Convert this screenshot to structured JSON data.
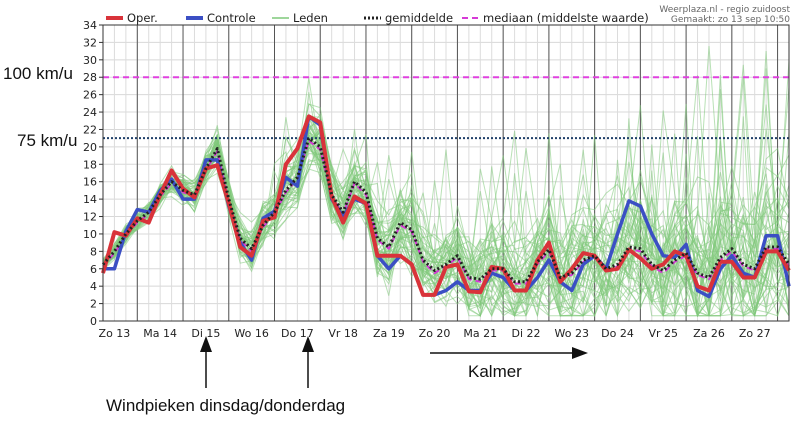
{
  "credits": [
    "Weerplaza.nl - regio zuidoost",
    "Gemaakt: zo 13 sep 10:50"
  ],
  "legend": [
    {
      "label": "Oper.",
      "color": "#d9333a",
      "style": "solid-thick"
    },
    {
      "label": "Controle",
      "color": "#3b4fc4",
      "style": "solid-thick"
    },
    {
      "label": "Leden",
      "color": "#7fc97a",
      "style": "solid-thin"
    },
    {
      "label": "gemiddelde",
      "color": "#222222",
      "style": "dotted"
    },
    {
      "label": "mediaan (middelste waarde)",
      "color": "#d63ad6",
      "style": "dashed"
    }
  ],
  "annotations": {
    "left_labels": [
      {
        "text": "100 km/u",
        "value": 28,
        "color": "#e040e0"
      },
      {
        "text": "75 km/u",
        "value": 21,
        "color": "#20406a"
      }
    ],
    "kalmer": "Kalmer",
    "windpieken": "Windpieken dinsdag/donderdag"
  },
  "chart_data": {
    "type": "line",
    "ylim": [
      0,
      34
    ],
    "ytick_step": 2,
    "x_range": [
      0,
      30
    ],
    "day_labels": [
      "Zo 13",
      "Ma 14",
      "Di 15",
      "Wo 16",
      "Do 17",
      "Vr 18",
      "Za 19",
      "Zo 20",
      "Ma 21",
      "Di 22",
      "Wo 23",
      "Do 24",
      "Vr 25",
      "Za 26",
      "Zo 27"
    ],
    "reference_lines": [
      28,
      21
    ],
    "series": [
      {
        "name": "Oper.",
        "color": "#d9333a",
        "x": [
          0,
          0.5,
          1,
          1.5,
          2,
          2.5,
          3,
          3.5,
          4,
          4.5,
          5,
          5.5,
          6,
          6.5,
          7,
          7.5,
          8,
          8.5,
          9,
          9.5,
          10,
          10.5,
          11,
          11.5,
          12,
          12.5,
          13,
          13.5,
          14,
          14.5,
          15,
          15.5,
          16,
          16.5,
          17,
          17.5,
          18,
          18.5,
          19,
          19.5,
          20,
          20.5,
          21,
          21.5,
          22,
          22.5,
          23,
          23.5,
          24,
          24.5,
          25,
          25.5,
          26,
          26.5,
          27,
          27.5,
          28,
          28.5,
          29,
          29.5,
          30
        ],
        "values": [
          5.5,
          10.2,
          9.8,
          11.8,
          11.3,
          14.5,
          17.3,
          15.2,
          14.2,
          17.5,
          17.9,
          13.5,
          8.5,
          7.5,
          11.5,
          11.9,
          18,
          19.8,
          23.5,
          22.8,
          14.3,
          11.3,
          14.3,
          13.5,
          7.5,
          7.5,
          7.5,
          6.5,
          3,
          3,
          6.2,
          6.5,
          3.4,
          3.3,
          6.2,
          6,
          3.5,
          3.5,
          7,
          9,
          4.5,
          6,
          7.8,
          7.5,
          5.8,
          6,
          8.2,
          7.2,
          6,
          6.5,
          8,
          7.5,
          4,
          3.5,
          6.8,
          6.8,
          5,
          5,
          8,
          8,
          5.8
        ]
      },
      {
        "name": "Controle",
        "color": "#3b4fc4",
        "x": [
          0,
          0.5,
          1,
          1.5,
          2,
          2.5,
          3,
          3.5,
          4,
          4.5,
          5,
          5.5,
          6,
          6.5,
          7,
          7.5,
          8,
          8.5,
          9,
          9.5,
          10,
          10.5,
          11,
          11.5,
          12,
          12.5,
          13,
          13.5,
          14,
          14.5,
          15,
          15.5,
          16,
          16.5,
          17,
          17.5,
          18,
          18.5,
          19,
          19.5,
          20,
          20.5,
          21,
          21.5,
          22,
          22.5,
          23,
          23.5,
          24,
          24.5,
          25,
          25.5,
          26,
          26.5,
          27,
          27.5,
          28,
          28.5,
          29,
          29.5,
          30
        ],
        "values": [
          6,
          6,
          10.3,
          12.8,
          12.5,
          15,
          16.3,
          14,
          14,
          18.5,
          18.5,
          13.2,
          9,
          7,
          11.8,
          12.6,
          16.5,
          15.5,
          23.5,
          22.5,
          14,
          12,
          14,
          13.5,
          7.5,
          6,
          7.5,
          6.5,
          3,
          3,
          3.5,
          4.5,
          3.5,
          3.5,
          5.5,
          5,
          3.5,
          3.5,
          5,
          7,
          4.5,
          3.5,
          6.5,
          7.5,
          6,
          10,
          13.8,
          13.2,
          10,
          7.5,
          7.3,
          8.8,
          3.5,
          2.8,
          6,
          7.5,
          5.5,
          5,
          9.8,
          9.8,
          4
        ]
      },
      {
        "name": "gemiddelde",
        "color": "#222222",
        "x": [
          0,
          0.5,
          1,
          1.5,
          2,
          2.5,
          3,
          3.5,
          4,
          4.5,
          5,
          5.5,
          6,
          6.5,
          7,
          7.5,
          8,
          8.5,
          9,
          9.5,
          10,
          10.5,
          11,
          11.5,
          12,
          12.5,
          13,
          13.5,
          14,
          14.5,
          15,
          15.5,
          16,
          16.5,
          17,
          17.5,
          18,
          18.5,
          19,
          19.5,
          20,
          20.5,
          21,
          21.5,
          22,
          22.5,
          23,
          23.5,
          24,
          24.5,
          25,
          25.5,
          26,
          26.5,
          27,
          27.5,
          28,
          28.5,
          29,
          29.5,
          30
        ],
        "values": [
          6.5,
          8,
          10,
          11.5,
          12.5,
          14.5,
          16,
          15,
          14.5,
          17.5,
          19.8,
          14,
          9.5,
          8.3,
          11,
          12.5,
          15,
          16.5,
          21,
          20,
          14.5,
          12.5,
          16,
          14.8,
          9.5,
          8.5,
          11.3,
          10.5,
          7,
          5.8,
          6.5,
          7.5,
          5,
          4.8,
          6,
          6,
          4.5,
          4.5,
          6.8,
          8.2,
          5,
          5.5,
          7,
          7.5,
          6,
          6.5,
          8.5,
          8.3,
          6.5,
          5.8,
          7,
          7.8,
          5.5,
          5,
          7.3,
          8.3,
          6.5,
          6,
          8.5,
          8.5,
          6.5
        ]
      },
      {
        "name": "mediaan (middelste waarde)",
        "color": "#d63ad6",
        "x": [
          0,
          0.5,
          1,
          1.5,
          2,
          2.5,
          3,
          3.5,
          4,
          4.5,
          5,
          5.5,
          6,
          6.5,
          7,
          7.5,
          8,
          8.5,
          9,
          9.5,
          10,
          10.5,
          11,
          11.5,
          12,
          12.5,
          13,
          13.5,
          14,
          14.5,
          15,
          15.5,
          16,
          16.5,
          17,
          17.5,
          18,
          18.5,
          19,
          19.5,
          20,
          20.5,
          21,
          21.5,
          22,
          22.5,
          23,
          23.5,
          24,
          24.5,
          25,
          25.5,
          26,
          26.5,
          27,
          27.5,
          28,
          28.5,
          29,
          29.5,
          30
        ],
        "values": [
          6.3,
          7.8,
          9.8,
          11.3,
          12.3,
          14.3,
          15.8,
          14.8,
          14.3,
          17.3,
          19.5,
          13.8,
          9.3,
          8,
          10.8,
          12.3,
          14.8,
          16.3,
          20.7,
          19.7,
          14.3,
          12.3,
          15.8,
          14.5,
          9.3,
          8.3,
          11,
          10.3,
          6.8,
          5.5,
          6.3,
          7.3,
          4.8,
          4.5,
          5.8,
          5.8,
          4.3,
          4.3,
          6.5,
          8,
          4.8,
          5.3,
          6.8,
          7.3,
          5.8,
          6.3,
          8.3,
          8,
          6.3,
          5.5,
          6.8,
          7.5,
          5.3,
          4.8,
          7,
          8,
          6.3,
          5.8,
          8.3,
          8.3,
          6.3
        ]
      }
    ]
  }
}
